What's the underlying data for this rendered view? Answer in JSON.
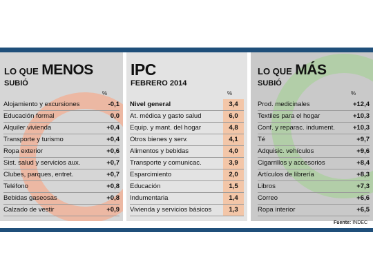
{
  "chart_data": [
    {
      "type": "table",
      "title_prefix": "LO QUE",
      "title_main": "MENOS",
      "subtitle": "SUBIÓ",
      "unit": "%",
      "rows": [
        {
          "label": "Alojamiento y excursiones",
          "value": "-0,1"
        },
        {
          "label": "Educación formal",
          "value": "0,0"
        },
        {
          "label": "Alquiler vivienda",
          "value": "+0,4"
        },
        {
          "label": "Transporte y turismo",
          "value": "+0,4"
        },
        {
          "label": "Ropa exterior",
          "value": "+0,6"
        },
        {
          "label": "Sist. salud y servicios aux.",
          "value": "+0,7"
        },
        {
          "label": "Clubes, parques, entret.",
          "value": "+0,7"
        },
        {
          "label": "Teléfono",
          "value": "+0,8"
        },
        {
          "label": "Bebidas gaseosas",
          "value": "+0,8"
        },
        {
          "label": "Calzado de vestir",
          "value": "+0,9"
        }
      ]
    },
    {
      "type": "table",
      "title_main": "IPC",
      "subtitle": "FEBRERO 2014",
      "unit": "%",
      "rows": [
        {
          "label": "Nivel general",
          "value": "3,4"
        },
        {
          "label": "At. médica y gasto salud",
          "value": "6,0"
        },
        {
          "label": "Equip. y mant. del hogar",
          "value": "4,8"
        },
        {
          "label": "Otros bienes y serv.",
          "value": "4,1"
        },
        {
          "label": "Alimentos y bebidas",
          "value": "4,0"
        },
        {
          "label": "Transporte y comunicac.",
          "value": "3,9"
        },
        {
          "label": "Esparcimiento",
          "value": "2,0"
        },
        {
          "label": "Educación",
          "value": "1,5"
        },
        {
          "label": "Indumentaria",
          "value": "1,4"
        },
        {
          "label": "Vivienda y servicios básicos",
          "value": "1,3"
        }
      ]
    },
    {
      "type": "table",
      "title_prefix": "LO QUE",
      "title_main": "MÁS",
      "subtitle": "SUBIÓ",
      "unit": "%",
      "rows": [
        {
          "label": "Prod. medicinales",
          "value": "+12,4"
        },
        {
          "label": "Textiles para el hogar",
          "value": "+10,3"
        },
        {
          "label": "Conf. y reparac. indument.",
          "value": "+10,3"
        },
        {
          "label": "Té",
          "value": "+9,7"
        },
        {
          "label": "Adquisic. vehículos",
          "value": "+9,6"
        },
        {
          "label": "Cigarrillos y accesorios",
          "value": "+8,4"
        },
        {
          "label": "Artículos de librería",
          "value": "+8,3"
        },
        {
          "label": "Libros",
          "value": "+7,3"
        },
        {
          "label": "Correo",
          "value": "+6,6"
        },
        {
          "label": "Ropa interior",
          "value": "+6,5"
        }
      ]
    }
  ],
  "source": {
    "label": "Fuente:",
    "value": "INDEC"
  },
  "colors": {
    "bar": "#1f4f7a",
    "highlight": "#f3c6a8",
    "left_deco": "#f0b39a",
    "right_deco": "#a9cf9c"
  }
}
